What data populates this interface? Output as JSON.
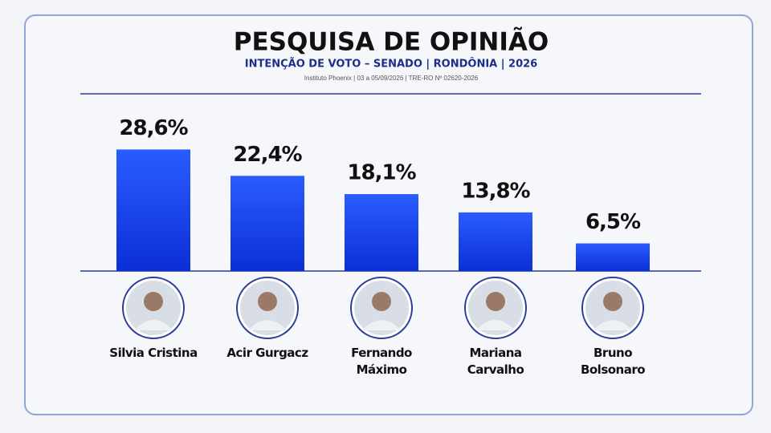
{
  "chart_data": {
    "type": "bar",
    "title": "PESQUISA DE OPINIÃO",
    "subtitle": "INTENÇÃO DE VOTO – SENADO | RONDÔNIA | 2026",
    "note": "Instituto Phoenix | 03 a 05/09/2026 | TRE-RO Nº 02620-2026",
    "categories": [
      "Silvia Cristina",
      "Acir Gurgacz",
      "Fernando Máximo",
      "Mariana Carvalho",
      "Bruno Bolsonaro"
    ],
    "values": [
      28.6,
      22.4,
      18.1,
      13.8,
      6.5
    ],
    "value_labels": [
      "28,6%",
      "22,4%",
      "18,1%",
      "13,8%",
      "6,5%"
    ],
    "color": "#1545ee"
  }
}
